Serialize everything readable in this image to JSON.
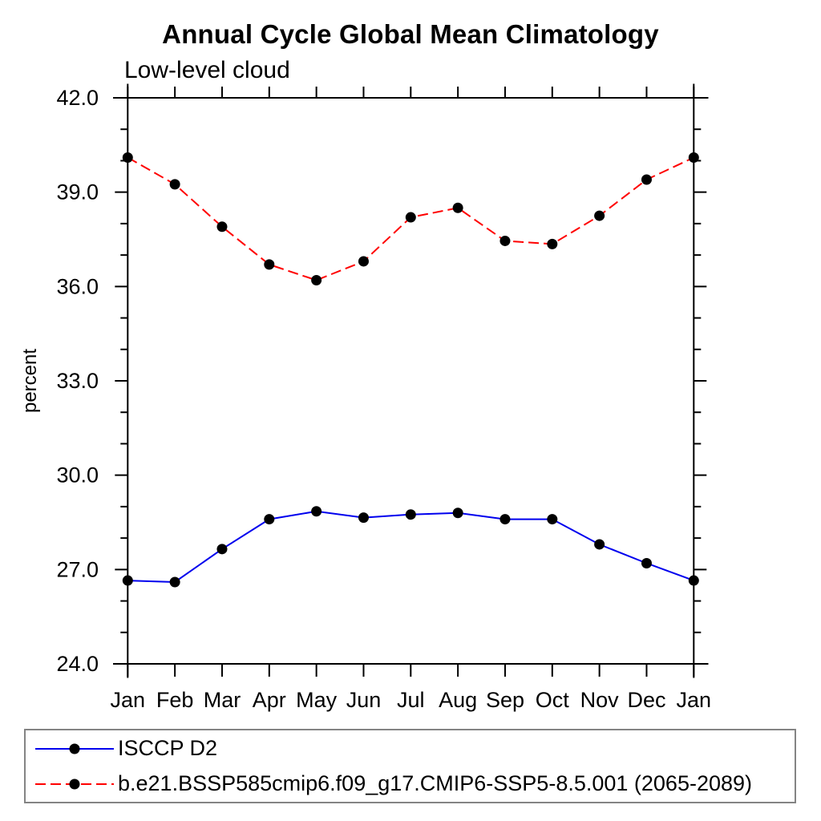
{
  "chart_data": {
    "type": "line",
    "title": "Annual Cycle Global Mean Climatology",
    "subtitle": "Low-level cloud",
    "ylabel": "percent",
    "categories": [
      "Jan",
      "Feb",
      "Mar",
      "Apr",
      "May",
      "Jun",
      "Jul",
      "Aug",
      "Sep",
      "Oct",
      "Nov",
      "Dec",
      "Jan"
    ],
    "ylim": [
      24.0,
      42.0
    ],
    "y_major_ticks": [
      24.0,
      27.0,
      30.0,
      33.0,
      36.0,
      39.0,
      42.0
    ],
    "y_minor_step": 1.0,
    "grid": false,
    "legend_position": "bottom",
    "axis_color": "#000000",
    "marker": "filled-circle",
    "marker_color": "#000000",
    "series": [
      {
        "name": "ISCCP D2",
        "color": "#0000ee",
        "style": "solid",
        "values": [
          26.65,
          26.6,
          27.65,
          28.6,
          28.85,
          28.65,
          28.75,
          28.8,
          28.6,
          28.6,
          27.8,
          27.2,
          26.65
        ]
      },
      {
        "name": "b.e21.BSSP585cmip6.f09_g17.CMIP6-SSP5-8.5.001 (2065-2089)",
        "color": "#ff0000",
        "style": "dashed",
        "values": [
          40.1,
          39.25,
          37.9,
          36.7,
          36.2,
          36.8,
          38.2,
          38.5,
          37.45,
          37.35,
          38.25,
          39.4,
          40.1
        ]
      }
    ]
  }
}
